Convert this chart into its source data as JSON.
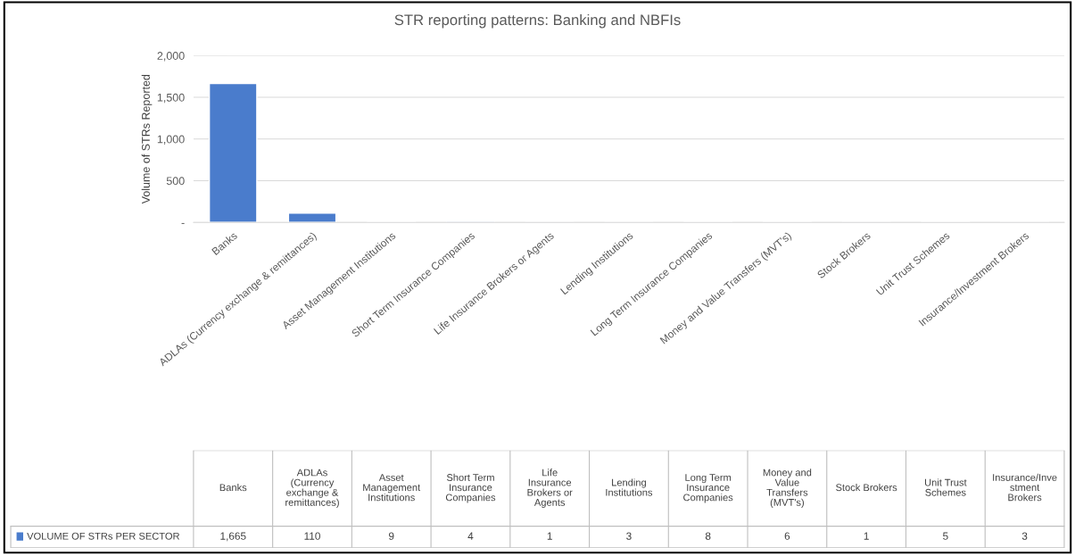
{
  "chart_data": {
    "type": "bar",
    "title": "STR reporting patterns: Banking and NBFIs",
    "ylabel": "Volume of STRs Reported",
    "categories": [
      "Banks",
      "ADLAs (Currency exchange & remittances)",
      "Asset Management Institutions",
      "Short Term Insurance Companies",
      "Life Insurance Brokers or Agents",
      "Lending Institutions",
      "Long Term Insurance Companies",
      "Money and Value Transfers (MVT's)",
      "Stock Brokers",
      "Unit Trust Schemes",
      "Insurance/Investment Brokers"
    ],
    "series": [
      {
        "name": "VOLUME OF STRs PER SECTOR",
        "color": "#4a7ccc",
        "values": [
          1665,
          110,
          9,
          4,
          1,
          3,
          8,
          6,
          1,
          5,
          3
        ],
        "value_labels": [
          "1,665",
          "110",
          "9",
          "4",
          "1",
          "3",
          "8",
          "6",
          "1",
          "5",
          "3"
        ]
      }
    ],
    "ylim": [
      0,
      2000
    ],
    "yticks": [
      {
        "value": 0,
        "label": "-"
      },
      500,
      {
        "value": 1000,
        "label": "1,000"
      },
      {
        "value": 1500,
        "label": "1,500"
      },
      {
        "value": 2000,
        "label": "2,000"
      }
    ],
    "grid": "y",
    "legend": "bottom"
  }
}
